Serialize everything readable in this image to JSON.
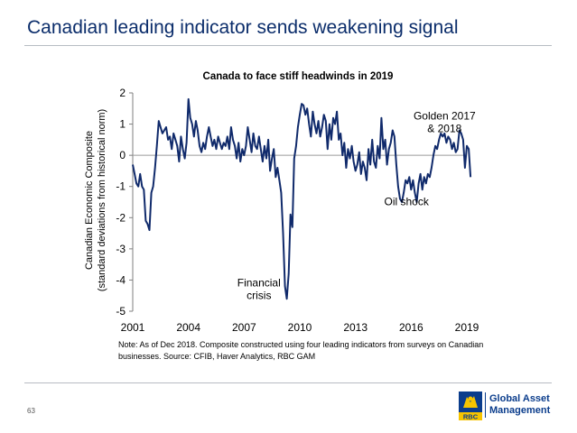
{
  "slide": {
    "title": "Canadian leading indicator sends weakening signal",
    "page_number": "63",
    "note": "Note: As of Dec 2018. Composite constructed using four leading indicators from surveys on Canadian businesses. Source: CFIB, Haver Analytics, RBC GAM",
    "brand_line1": "Global Asset",
    "brand_line2": "Management",
    "logo_text": "RBC",
    "colors": {
      "title": "#0b2d6b",
      "series": "#102a6b",
      "brand": "#0b3d8c",
      "logo_gold": "#f6c400"
    }
  },
  "chart_data": {
    "type": "line",
    "title": "Canada to face stiff headwinds in 2019",
    "ylabel_line1": "Canadian Economic Composite",
    "ylabel_line2": "(standard deviations from historical norm)",
    "xlabel": "",
    "xlim": [
      2001,
      2019
    ],
    "ylim": [
      -5,
      2
    ],
    "xticks": [
      "2001",
      "2004",
      "2007",
      "2010",
      "2013",
      "2016",
      "2019"
    ],
    "yticks": [
      "2",
      "1",
      "0",
      "-1",
      "-2",
      "-3",
      "-4",
      "-5"
    ],
    "grid": false,
    "annotations": [
      {
        "text_lines": [
          "Golden 2017",
          "& 2018"
        ],
        "x": 2017.8,
        "y": 1.15
      },
      {
        "text_lines": [
          "Oil shock"
        ],
        "x": 2015.75,
        "y": -1.6
      },
      {
        "text_lines": [
          "Financial",
          "crisis"
        ],
        "x": 2007.8,
        "y": -4.2
      }
    ],
    "series": [
      {
        "values": [
          [
            2001.0,
            -0.3
          ],
          [
            2001.1,
            -0.6
          ],
          [
            2001.2,
            -0.9
          ],
          [
            2001.3,
            -1.0
          ],
          [
            2001.4,
            -0.6
          ],
          [
            2001.5,
            -1.0
          ],
          [
            2001.6,
            -1.1
          ],
          [
            2001.7,
            -2.1
          ],
          [
            2001.8,
            -2.2
          ],
          [
            2001.9,
            -2.4
          ],
          [
            2002.0,
            -1.2
          ],
          [
            2002.1,
            -1.0
          ],
          [
            2002.2,
            -0.4
          ],
          [
            2002.3,
            0.3
          ],
          [
            2002.4,
            1.1
          ],
          [
            2002.5,
            0.9
          ],
          [
            2002.6,
            0.7
          ],
          [
            2002.7,
            0.8
          ],
          [
            2002.8,
            0.9
          ],
          [
            2002.9,
            0.5
          ],
          [
            2003.0,
            0.6
          ],
          [
            2003.1,
            0.2
          ],
          [
            2003.2,
            0.7
          ],
          [
            2003.3,
            0.5
          ],
          [
            2003.4,
            0.3
          ],
          [
            2003.5,
            -0.2
          ],
          [
            2003.6,
            0.6
          ],
          [
            2003.7,
            0.2
          ],
          [
            2003.8,
            -0.1
          ],
          [
            2003.9,
            0.4
          ],
          [
            2004.0,
            1.8
          ],
          [
            2004.1,
            1.2
          ],
          [
            2004.2,
            1.0
          ],
          [
            2004.3,
            0.6
          ],
          [
            2004.4,
            1.1
          ],
          [
            2004.5,
            0.8
          ],
          [
            2004.6,
            0.3
          ],
          [
            2004.7,
            0.1
          ],
          [
            2004.8,
            0.4
          ],
          [
            2004.9,
            0.2
          ],
          [
            2005.0,
            0.6
          ],
          [
            2005.1,
            0.9
          ],
          [
            2005.2,
            0.6
          ],
          [
            2005.3,
            0.3
          ],
          [
            2005.4,
            0.5
          ],
          [
            2005.5,
            0.2
          ],
          [
            2005.6,
            0.6
          ],
          [
            2005.7,
            0.4
          ],
          [
            2005.8,
            0.2
          ],
          [
            2005.9,
            0.4
          ],
          [
            2006.0,
            0.3
          ],
          [
            2006.1,
            0.6
          ],
          [
            2006.2,
            0.2
          ],
          [
            2006.3,
            0.9
          ],
          [
            2006.4,
            0.5
          ],
          [
            2006.5,
            0.3
          ],
          [
            2006.6,
            -0.1
          ],
          [
            2006.7,
            0.4
          ],
          [
            2006.8,
            -0.2
          ],
          [
            2006.9,
            0.2
          ],
          [
            2007.0,
            0.0
          ],
          [
            2007.1,
            0.3
          ],
          [
            2007.2,
            0.9
          ],
          [
            2007.3,
            0.5
          ],
          [
            2007.4,
            0.1
          ],
          [
            2007.5,
            0.7
          ],
          [
            2007.6,
            0.3
          ],
          [
            2007.7,
            0.2
          ],
          [
            2007.8,
            0.6
          ],
          [
            2007.9,
            0.2
          ],
          [
            2008.0,
            -0.2
          ],
          [
            2008.1,
            0.3
          ],
          [
            2008.2,
            -0.1
          ],
          [
            2008.3,
            0.5
          ],
          [
            2008.4,
            -0.5
          ],
          [
            2008.5,
            -0.1
          ],
          [
            2008.6,
            0.2
          ],
          [
            2008.7,
            -0.7
          ],
          [
            2008.8,
            -0.4
          ],
          [
            2008.9,
            -0.8
          ],
          [
            2009.0,
            -1.2
          ],
          [
            2009.1,
            -2.5
          ],
          [
            2009.2,
            -4.2
          ],
          [
            2009.3,
            -4.6
          ],
          [
            2009.4,
            -3.8
          ],
          [
            2009.5,
            -1.9
          ],
          [
            2009.6,
            -2.3
          ],
          [
            2009.7,
            -0.1
          ],
          [
            2009.8,
            0.3
          ],
          [
            2009.9,
            0.9
          ],
          [
            2010.0,
            1.3
          ],
          [
            2010.1,
            1.65
          ],
          [
            2010.2,
            1.6
          ],
          [
            2010.3,
            1.3
          ],
          [
            2010.4,
            1.5
          ],
          [
            2010.5,
            1.0
          ],
          [
            2010.6,
            0.6
          ],
          [
            2010.7,
            1.4
          ],
          [
            2010.8,
            1.0
          ],
          [
            2010.9,
            0.7
          ],
          [
            2011.0,
            1.1
          ],
          [
            2011.1,
            0.6
          ],
          [
            2011.2,
            0.9
          ],
          [
            2011.3,
            1.3
          ],
          [
            2011.4,
            1.1
          ],
          [
            2011.5,
            0.2
          ],
          [
            2011.6,
            1.0
          ],
          [
            2011.7,
            0.5
          ],
          [
            2011.8,
            1.2
          ],
          [
            2011.9,
            1.0
          ],
          [
            2012.0,
            1.4
          ],
          [
            2012.1,
            0.5
          ],
          [
            2012.2,
            0.7
          ],
          [
            2012.3,
            0.0
          ],
          [
            2012.4,
            0.4
          ],
          [
            2012.5,
            -0.4
          ],
          [
            2012.6,
            0.2
          ],
          [
            2012.7,
            -0.1
          ],
          [
            2012.8,
            0.3
          ],
          [
            2012.9,
            -0.2
          ],
          [
            2013.0,
            -0.5
          ],
          [
            2013.1,
            -0.3
          ],
          [
            2013.2,
            0.1
          ],
          [
            2013.3,
            -0.6
          ],
          [
            2013.4,
            -0.2
          ],
          [
            2013.5,
            -0.4
          ],
          [
            2013.6,
            -0.8
          ],
          [
            2013.7,
            0.2
          ],
          [
            2013.8,
            -0.3
          ],
          [
            2013.9,
            0.5
          ],
          [
            2014.0,
            -0.2
          ],
          [
            2014.1,
            -0.4
          ],
          [
            2014.2,
            0.3
          ],
          [
            2014.3,
            -0.1
          ],
          [
            2014.4,
            1.2
          ],
          [
            2014.5,
            0.2
          ],
          [
            2014.6,
            0.5
          ],
          [
            2014.7,
            -0.3
          ],
          [
            2014.8,
            0.2
          ],
          [
            2014.9,
            0.4
          ],
          [
            2015.0,
            0.8
          ],
          [
            2015.1,
            0.6
          ],
          [
            2015.2,
            -0.3
          ],
          [
            2015.3,
            -1.0
          ],
          [
            2015.4,
            -1.4
          ],
          [
            2015.5,
            -1.5
          ],
          [
            2015.6,
            -1.2
          ],
          [
            2015.7,
            -0.8
          ],
          [
            2015.8,
            -0.9
          ],
          [
            2015.9,
            -0.7
          ],
          [
            2016.0,
            -1.1
          ],
          [
            2016.1,
            -0.8
          ],
          [
            2016.2,
            -1.2
          ],
          [
            2016.3,
            -1.5
          ],
          [
            2016.4,
            -0.9
          ],
          [
            2016.5,
            -0.6
          ],
          [
            2016.6,
            -1.1
          ],
          [
            2016.7,
            -0.7
          ],
          [
            2016.8,
            -0.9
          ],
          [
            2016.9,
            -0.6
          ],
          [
            2017.0,
            -0.7
          ],
          [
            2017.1,
            -0.4
          ],
          [
            2017.2,
            0.0
          ],
          [
            2017.3,
            0.3
          ],
          [
            2017.4,
            0.2
          ],
          [
            2017.5,
            0.5
          ],
          [
            2017.6,
            0.7
          ],
          [
            2017.7,
            0.6
          ],
          [
            2017.8,
            0.7
          ],
          [
            2017.9,
            0.4
          ],
          [
            2018.0,
            0.6
          ],
          [
            2018.1,
            0.5
          ],
          [
            2018.2,
            0.2
          ],
          [
            2018.3,
            0.4
          ],
          [
            2018.4,
            0.1
          ],
          [
            2018.5,
            0.2
          ],
          [
            2018.6,
            0.8
          ],
          [
            2018.7,
            0.7
          ],
          [
            2018.8,
            0.5
          ],
          [
            2018.9,
            -0.4
          ],
          [
            2019.0,
            0.3
          ],
          [
            2019.1,
            0.2
          ],
          [
            2019.2,
            -0.7
          ]
        ]
      }
    ]
  }
}
